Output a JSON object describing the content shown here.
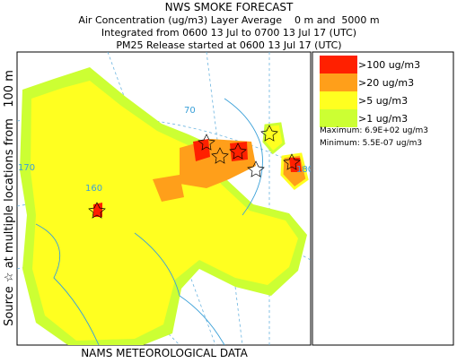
{
  "header": {
    "title": "NWS SMOKE FORECAST",
    "lines": [
      "Air Concentration (ug/m3) Layer Average    0 m and  5000 m",
      "Integrated from 0600 13 Jul to 0700 13 Jul 17 (UTC)",
      "PM25 Release started at 0600 13 Jul 17 (UTC)"
    ]
  },
  "legend": {
    "items": [
      {
        "label": ">100 ug/m3",
        "color": "#ff2000"
      },
      {
        "label": ">20 ug/m3",
        "color": "#ff9f1a"
      },
      {
        "label": ">5 ug/m3",
        "color": "#ffff20"
      },
      {
        "label": ">1 ug/m3",
        "color": "#ccff33"
      }
    ],
    "maximum": "Maximum: 6.9E+02 ug/m3",
    "minimum": "Minimum: 5.5E-07 ug/m3"
  },
  "side_label": "Source ☆ at multiple locations from   100 m",
  "footer": "NAMS METEOROLOGICAL DATA",
  "map_labels": [
    "70",
    "170",
    "160",
    "180"
  ]
}
